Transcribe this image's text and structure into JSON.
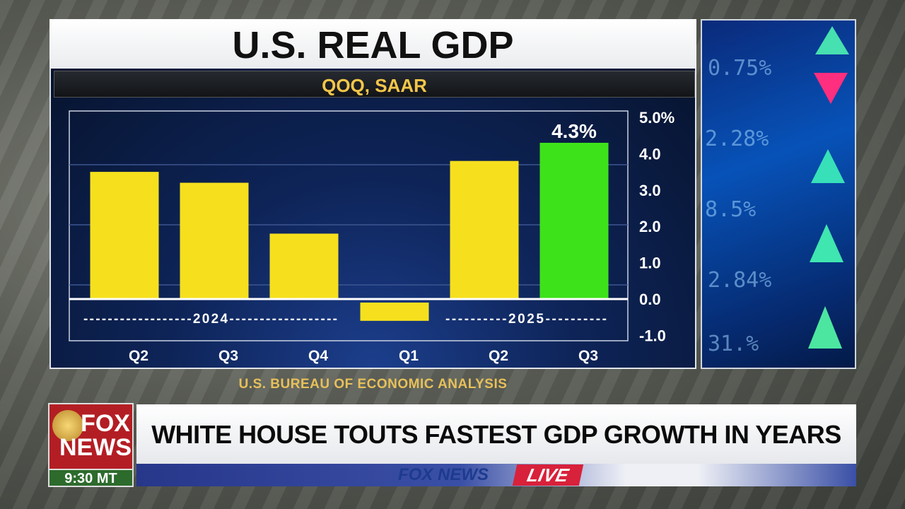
{
  "chart_data": {
    "type": "bar",
    "title": "U.S. REAL GDP",
    "subtitle": "QOQ, SAAR",
    "categories": [
      "Q2",
      "Q3",
      "Q4",
      "Q1",
      "Q2",
      "Q3"
    ],
    "groups": [
      {
        "label": "2024",
        "categories": [
          0,
          1,
          2
        ]
      },
      {
        "label": "2025",
        "categories": [
          3,
          4,
          5
        ]
      }
    ],
    "values": [
      3.5,
      3.2,
      1.8,
      -0.6,
      3.8,
      4.3
    ],
    "bar_colors": [
      "#f6e01e",
      "#f6e01e",
      "#f6e01e",
      "#f6e01e",
      "#f6e01e",
      "#3ee21a"
    ],
    "data_labels": [
      null,
      null,
      null,
      null,
      null,
      "4.3%"
    ],
    "yticks": [
      "5.0%",
      "4.0",
      "3.0",
      "2.0",
      "1.0",
      "0.0",
      "-1.0"
    ],
    "ytick_values": [
      5,
      4,
      3,
      2,
      1,
      0,
      -1
    ],
    "ylim": [
      -1,
      5
    ],
    "yaxis_position": "right",
    "grid": true,
    "xlabel": "",
    "ylabel": ""
  },
  "source": "U.S. BUREAU OF ECONOMIC ANALYSIS",
  "lower_third": {
    "logo_text": "FOX NEWS",
    "clock": "9:30 MT",
    "headline": "WHITE HOUSE TOUTS FASTEST GDP GROWTH IN YEARS",
    "brand": "FOX NEWS",
    "live": "LIVE",
    "live_color": "#d8213a"
  }
}
